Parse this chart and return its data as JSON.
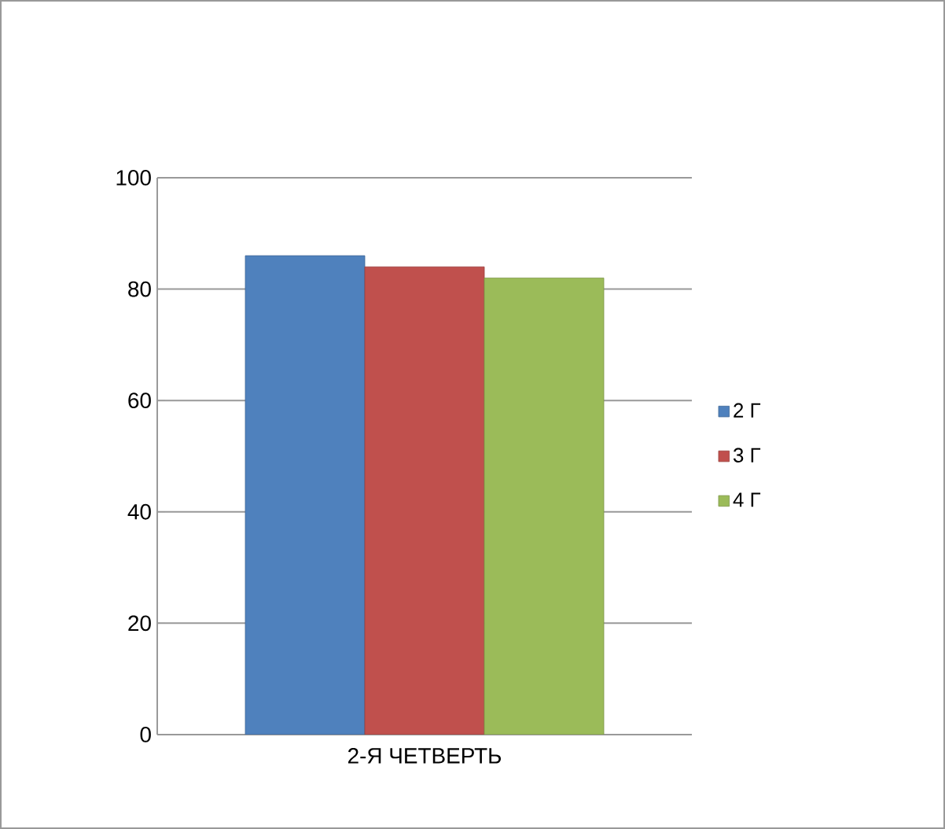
{
  "chart_data": {
    "type": "bar",
    "categories": [
      "2-Я ЧЕТВЕРТЬ"
    ],
    "series": [
      {
        "name": "2 Г",
        "color": "#4f81bd",
        "values": [
          86
        ]
      },
      {
        "name": "3 Г",
        "color": "#c0504d",
        "values": [
          84
        ]
      },
      {
        "name": "4 Г",
        "color": "#9bbb59",
        "values": [
          82
        ]
      }
    ],
    "ylim": [
      0,
      100
    ],
    "yticks": [
      0,
      20,
      40,
      60,
      80,
      100
    ],
    "grid": "y",
    "legend": "right"
  }
}
